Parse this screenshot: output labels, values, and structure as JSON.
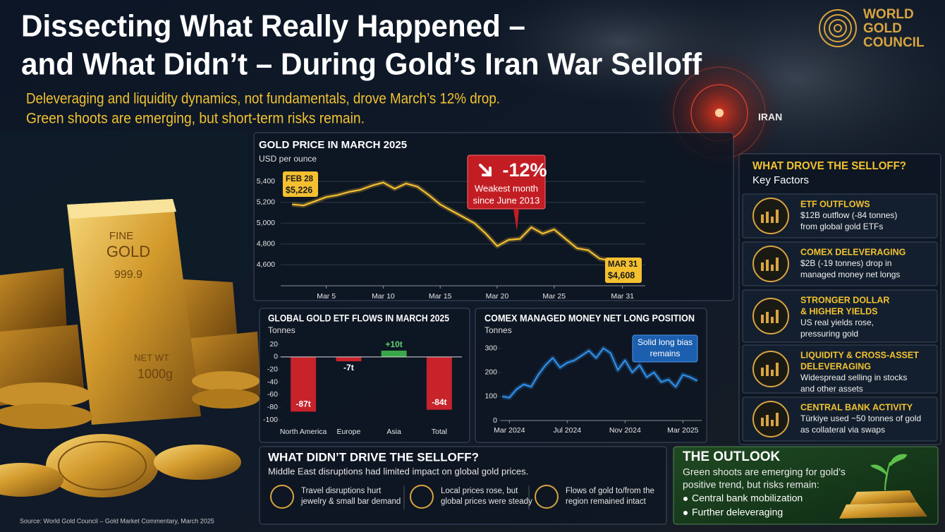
{
  "header": {
    "title_line1": "Dissecting What Really Happened –",
    "title_line2": "and What Didn’t – During Gold’s Iran War Selloff",
    "subtitle_line1": "Deleveraging and liquidity dynamics, not fundamentals, drove March’s 12% drop.",
    "subtitle_line2": "Green shoots are emerging, but short-term risks remain."
  },
  "logo": {
    "lines": [
      "WORLD",
      "GOLD",
      "COUNCIL"
    ]
  },
  "map_label": "IRAN",
  "gold_bar": [
    "FINE",
    "GOLD",
    "999.9",
    "NET WT",
    "1000g"
  ],
  "chart_data": [
    {
      "type": "line",
      "title": "GOLD PRICE IN MARCH 2025",
      "subtitle": "USD per ounce",
      "color": "#f5c030",
      "grid": true,
      "x": [
        2,
        3,
        4,
        5,
        6,
        7,
        8,
        9,
        10,
        11,
        12,
        13,
        14,
        15,
        16,
        17,
        18,
        19,
        20,
        21,
        22,
        23,
        24,
        25,
        26,
        27,
        28,
        29,
        30,
        31
      ],
      "values": [
        5180,
        5170,
        5210,
        5250,
        5270,
        5300,
        5320,
        5360,
        5390,
        5330,
        5380,
        5350,
        5270,
        5180,
        5120,
        5060,
        5000,
        4900,
        4780,
        4840,
        4850,
        4960,
        4900,
        4940,
        4850,
        4760,
        4740,
        4660,
        4640,
        4620
      ],
      "xlim": [
        1,
        33
      ],
      "xticks": [
        {
          "value": 5,
          "label": "Mar 5"
        },
        {
          "value": 10,
          "label": "Mar 10"
        },
        {
          "value": 15,
          "label": "Mar 15"
        },
        {
          "value": 20,
          "label": "Mar 20"
        },
        {
          "value": 25,
          "label": "Mar 25"
        },
        {
          "value": 31,
          "label": "Mar 31"
        }
      ],
      "ylim": [
        4400,
        5550
      ],
      "yticks": [
        {
          "value": 4600,
          "label": "4,600"
        },
        {
          "value": 4800,
          "label": "4,800"
        },
        {
          "value": 5000,
          "label": "5,000"
        },
        {
          "value": 5200,
          "label": "5,200"
        },
        {
          "value": 5400,
          "label": "5,400"
        }
      ],
      "annotations": {
        "callout": "-12%",
        "callout_note": [
          "Weakest month",
          "since June 2013"
        ],
        "start_label": [
          "FEB 28",
          "$5,226"
        ],
        "end_label": [
          "MAR 31",
          "$4,608"
        ]
      }
    },
    {
      "type": "bar",
      "title": "GLOBAL GOLD ETF FLOWS IN MARCH 2025",
      "subtitle": "Tonnes",
      "categories": [
        "North America",
        "Europe",
        "Asia",
        "Total"
      ],
      "values": [
        -87,
        -7,
        10,
        -84
      ],
      "value_labels": [
        "-87t",
        "-7t",
        "+10t",
        "-84t"
      ],
      "colors": [
        "#c8222a",
        "#c8222a",
        "#3aa64a",
        "#c8222a"
      ],
      "ylim": [
        -100,
        20
      ],
      "yticks": [
        20,
        0,
        -20,
        -40,
        -60,
        -80,
        -100
      ]
    },
    {
      "type": "line",
      "title": "COMEX MANAGED MONEY NET LONG POSITION",
      "subtitle": "Tonnes",
      "color": "#2f8fe8",
      "grid": false,
      "x": [
        -0.5,
        0,
        0.5,
        1,
        1.5,
        2,
        2.5,
        3,
        3.5,
        4,
        4.5,
        5,
        5.5,
        6,
        6.5,
        7,
        7.5,
        8,
        8.5,
        9,
        9.5,
        10,
        10.5,
        11,
        11.5,
        12,
        12.5,
        13
      ],
      "values": [
        100,
        95,
        130,
        150,
        140,
        190,
        230,
        260,
        220,
        240,
        250,
        270,
        290,
        260,
        300,
        280,
        210,
        250,
        200,
        230,
        180,
        200,
        160,
        170,
        140,
        190,
        180,
        165
      ],
      "xlim": [
        -0.6,
        13.3
      ],
      "xticks": [
        {
          "value": 0,
          "label": "Mar 2024"
        },
        {
          "value": 4,
          "label": "Jul 2024"
        },
        {
          "value": 8,
          "label": "Nov 2024"
        },
        {
          "value": 12,
          "label": "Mar 2025"
        }
      ],
      "ylim": [
        0,
        340
      ],
      "yticks": [
        0,
        100,
        200,
        300
      ],
      "annotations": {
        "callout_note": [
          "Solid long bias",
          "remains"
        ]
      }
    }
  ],
  "drivers": {
    "title": "WHAT DROVE THE SELLOFF?",
    "subtitle": "Key Factors",
    "items": [
      {
        "heading": [
          "ETF OUTFLOWS"
        ],
        "text": [
          "$12B outflow (-84 tonnes)",
          "from global gold ETFs"
        ]
      },
      {
        "heading": [
          "COMEX DELEVERAGING"
        ],
        "text": [
          "$2B (-19 tonnes) drop in",
          "managed money net longs"
        ]
      },
      {
        "heading": [
          "STRONGER DOLLAR",
          "& HIGHER YIELDS"
        ],
        "text": [
          "US real yields rose,",
          "pressuring gold"
        ]
      },
      {
        "heading": [
          "LIQUIDITY & CROSS-ASSET",
          "DELEVERAGING"
        ],
        "text": [
          "Widespread selling in stocks",
          "and other assets"
        ]
      },
      {
        "heading": [
          "CENTRAL BANK ACTIVITY"
        ],
        "text": [
          "Türkiye used ~50 tonnes of gold",
          "as collateral via swaps"
        ]
      }
    ]
  },
  "didnt": {
    "title": "WHAT DIDN’T DRIVE THE SELLOFF?",
    "subtitle": "Middle East disruptions had limited impact on global gold prices.",
    "items": [
      [
        "Travel disruptions hurt",
        "jewelry & small bar demand"
      ],
      [
        "Local prices rose, but",
        "global prices were steady"
      ],
      [
        "Flows of gold to/from the",
        "region remained intact"
      ]
    ]
  },
  "outlook": {
    "title": "THE OUTLOOK",
    "text": [
      "Green shoots are emerging for gold’s",
      "positive trend, but risks remain:"
    ],
    "bullets": [
      "Central bank mobilization",
      "Further deleveraging"
    ]
  },
  "source": "Source: World Gold Council – Gold Market Commentary, March 2025"
}
